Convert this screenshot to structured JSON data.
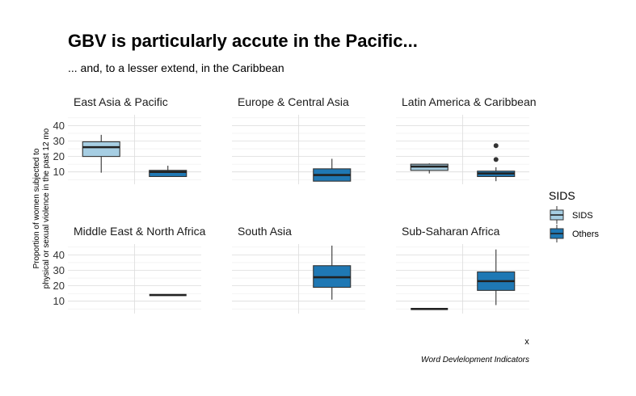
{
  "chart_data": {
    "type": "boxplot",
    "title": "GBV is particularly accute in the Pacific...",
    "subtitle": "... and, to a lesser extend, in the Caribbean",
    "ylabel_line1": "Proportion of women subjected to",
    "ylabel_line2": "physical or sexual violence in the past 12 mo",
    "xlabel": "x",
    "caption": "Word Devlelopment Indicators",
    "ylim": [
      2,
      47
    ],
    "yticks": [
      10,
      20,
      30,
      40
    ],
    "legend": {
      "title": "SIDS",
      "entries": [
        {
          "label": "SIDS",
          "color": "#a6cee3"
        },
        {
          "label": "Others",
          "color": "#1f78b4"
        }
      ]
    },
    "facets": [
      {
        "name": "East Asia & Pacific",
        "boxes": [
          {
            "group": "SIDS",
            "whisker_low": 9.5,
            "q1": 20,
            "median": 26,
            "q3": 29.5,
            "whisker_high": 34,
            "outliers": []
          },
          {
            "group": "Others",
            "whisker_low": 7,
            "q1": 7,
            "median": 10,
            "q3": 11,
            "whisker_high": 14,
            "outliers": []
          }
        ]
      },
      {
        "name": "Europe & Central Asia",
        "boxes": [
          {
            "group": "Others",
            "whisker_low": 4,
            "q1": 4,
            "median": 8,
            "q3": 12,
            "whisker_high": 18.5,
            "outliers": []
          }
        ]
      },
      {
        "name": "Latin America & Caribbean",
        "boxes": [
          {
            "group": "SIDS",
            "whisker_low": 9,
            "q1": 11,
            "median": 13.5,
            "q3": 15,
            "whisker_high": 15.5,
            "outliers": []
          },
          {
            "group": "Others",
            "whisker_low": 4,
            "q1": 7,
            "median": 9,
            "q3": 10.5,
            "whisker_high": 13,
            "outliers": [
              18,
              27
            ]
          }
        ]
      },
      {
        "name": "Middle East & North Africa",
        "boxes": [
          {
            "group": "Others",
            "whisker_low": 14,
            "q1": 14,
            "median": 14,
            "q3": 14,
            "whisker_high": 14,
            "outliers": []
          }
        ]
      },
      {
        "name": "South Asia",
        "boxes": [
          {
            "group": "Others",
            "whisker_low": 11,
            "q1": 19,
            "median": 25.5,
            "q3": 33,
            "whisker_high": 46,
            "outliers": []
          }
        ]
      },
      {
        "name": "Sub-Saharan Africa",
        "boxes": [
          {
            "group": "SIDS",
            "whisker_low": 5,
            "q1": 5,
            "median": 5,
            "q3": 5,
            "whisker_high": 5,
            "outliers": []
          },
          {
            "group": "Others",
            "whisker_low": 7.5,
            "q1": 17,
            "median": 23,
            "q3": 29,
            "whisker_high": 43.5,
            "outliers": []
          }
        ]
      }
    ]
  }
}
